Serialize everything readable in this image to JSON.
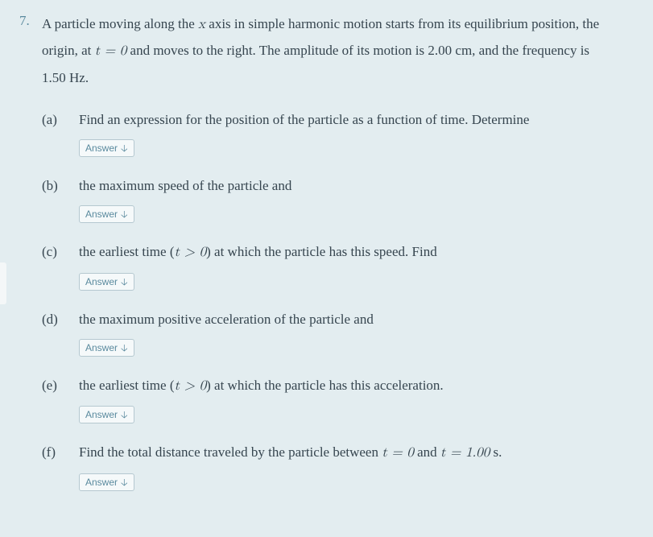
{
  "problem": {
    "number": "7.",
    "stem_pre": "A particle moving along the ",
    "stem_x": "x",
    "stem_mid1": " axis in simple harmonic motion starts from its equilibrium position, the origin, at ",
    "stem_t0": "t = 0",
    "stem_post": " and moves to the right. The amplitude of its motion is 2.00 cm, and the frequency is 1.50 Hz."
  },
  "parts": {
    "a": {
      "label": "(a)",
      "text": "Find an expression for the position of the particle as a function of time. Determine"
    },
    "b": {
      "label": "(b)",
      "text": "the maximum speed of the particle and"
    },
    "c": {
      "label": "(c)",
      "pre": "the earliest time (",
      "tg0": "t > 0",
      "post": ") at which the particle has this speed. Find"
    },
    "d": {
      "label": "(d)",
      "text": "the maximum positive acceleration of the particle and"
    },
    "e": {
      "label": "(e)",
      "pre": "the earliest time (",
      "tg0": "t > 0",
      "post": ") at which the particle has this acceleration."
    },
    "f": {
      "label": "(f)",
      "pre": "Find the total distance traveled by the particle between ",
      "t0": "t = 0",
      "mid": " and ",
      "t1": "t = 1.00",
      "unit": " s."
    }
  },
  "buttons": {
    "answer": "Answer"
  },
  "colors": {
    "background": "#e3edf0",
    "text": "#36454f",
    "accent": "#5a8a9e",
    "btn_bg": "#f5f9fa",
    "btn_border": "#b5c8d0"
  }
}
